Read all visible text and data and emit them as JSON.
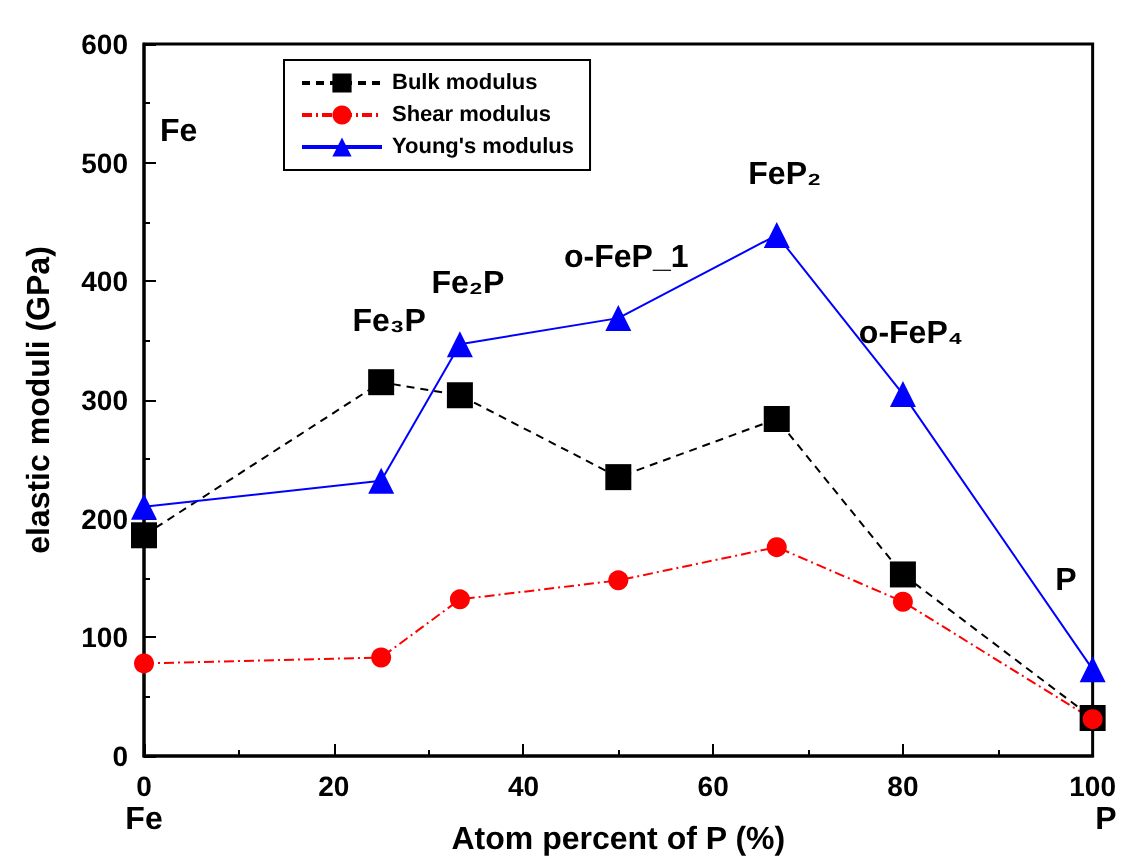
{
  "chart_data": {
    "type": "line",
    "xlabel": "Atom percent of P (%)",
    "ylabel": "elastic moduli (GPa)",
    "xlim": [
      0,
      100
    ],
    "xticks": [
      0,
      20,
      40,
      60,
      80,
      100
    ],
    "ylim": [
      0,
      600
    ],
    "yticks": [
      0,
      100,
      200,
      300,
      400,
      500,
      600
    ],
    "x": [
      0,
      25,
      33.3,
      50,
      66.7,
      80,
      100
    ],
    "series": [
      {
        "name": "Bulk modulus",
        "color": "#000000",
        "marker": "square",
        "line_style": "dashed",
        "values": [
          186,
          315,
          304,
          235,
          284,
          153,
          32
        ]
      },
      {
        "name": "Shear modulus",
        "color": "#ff0000",
        "marker": "circle",
        "line_style": "dotted",
        "values": [
          78,
          83,
          132,
          148,
          176,
          130,
          31
        ]
      },
      {
        "name": "Young's modulus",
        "color": "#0000ff",
        "marker": "triangle",
        "line_style": "solid",
        "values": [
          210,
          232,
          347,
          369,
          439,
          305,
          73
        ]
      }
    ],
    "annotations": [
      "Fe",
      {
        "text": "Fe₃P",
        "x": 25,
        "y": 315
      },
      {
        "text": "Fe₂P",
        "x": 33.3,
        "y": 347
      },
      {
        "text": "o-FeP_1",
        "x": 50,
        "y": 369
      },
      {
        "text": "FeP₂",
        "x": 66.7,
        "y": 439
      },
      {
        "text": "o-FeP₄",
        "x": 80,
        "y": 305
      },
      {
        "text": "P",
        "x": 100,
        "y": 73
      },
      "Fe",
      "P"
    ],
    "legend": "top left",
    "grid": false
  }
}
